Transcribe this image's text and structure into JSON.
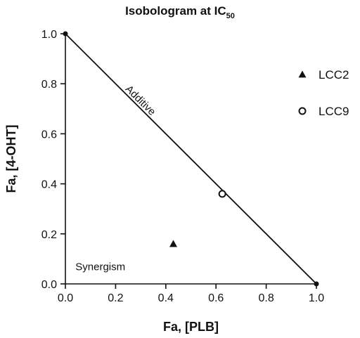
{
  "chart_data": {
    "type": "scatter",
    "title": "Isobologram at IC",
    "title_subscript": "50",
    "xlabel": "Fa, [PLB]",
    "ylabel": "Fa, [4-OHT]",
    "xlim": [
      0.0,
      1.0
    ],
    "ylim": [
      0.0,
      1.0
    ],
    "xticks": [
      "0.0",
      "0.2",
      "0.4",
      "0.6",
      "0.8",
      "1.0"
    ],
    "yticks": [
      "0.0",
      "0.2",
      "0.4",
      "0.6",
      "0.8",
      "1.0"
    ],
    "grid": false,
    "legend_position": "right",
    "additive_line": {
      "label": "Additive",
      "points": [
        {
          "x": 0.0,
          "y": 1.0
        },
        {
          "x": 1.0,
          "y": 0.0
        }
      ]
    },
    "region_label": "Synergism",
    "series": [
      {
        "name": "LCC2",
        "marker": "triangle-filled",
        "x": [
          0.43
        ],
        "y": [
          0.16
        ]
      },
      {
        "name": "LCC9",
        "marker": "circle-open",
        "x": [
          0.625
        ],
        "y": [
          0.36
        ]
      }
    ],
    "colors": {
      "ink": "#111111",
      "background": "#ffffff"
    }
  }
}
